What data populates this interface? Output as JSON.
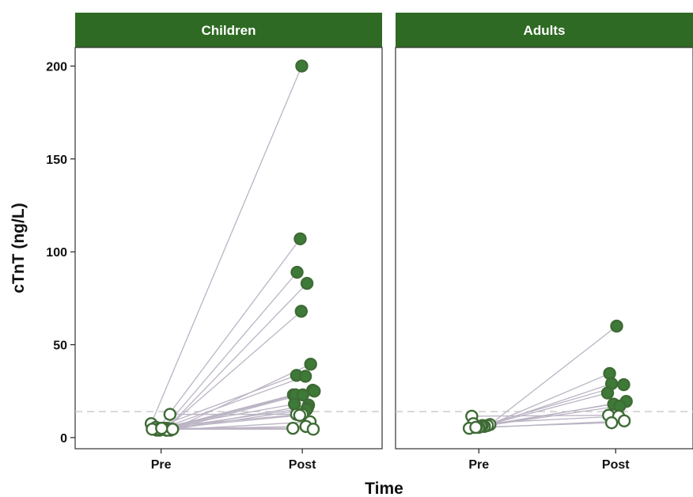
{
  "chart_data": {
    "type": "scatter",
    "title": "",
    "xlabel": "Time",
    "ylabel": "cTnT (ng/L)",
    "x_categories": [
      "Pre",
      "Post"
    ],
    "ylim": [
      -6,
      210
    ],
    "yticks": [
      0,
      50,
      100,
      150,
      200
    ],
    "reference_line": 14,
    "grid": false,
    "legend": "none",
    "colors": {
      "strip_fill": "#2e6a23",
      "point_fill": "#3e7a37",
      "open_point_fill": "#ffffff",
      "point_edge": "#3e6b35",
      "connector": "#bbb4c4",
      "reference_line": "#c8c8c8"
    },
    "panels": [
      {
        "name": "Children",
        "pairs": [
          {
            "pre": 7.5,
            "post": 200,
            "pre_xoff": -0.19,
            "post_xoff": -0.01
          },
          {
            "pre": 5,
            "post": 107,
            "pre_xoff": -0.05,
            "post_xoff": -0.04
          },
          {
            "pre": 4.5,
            "post": 89,
            "pre_xoff": 0.04,
            "post_xoff": -0.1
          },
          {
            "pre": 5,
            "post": 83,
            "pre_xoff": 0.11,
            "post_xoff": 0.09
          },
          {
            "pre": 4.5,
            "post": 68,
            "pre_xoff": 0.08,
            "post_xoff": -0.02
          },
          {
            "pre": 4,
            "post": 39.5,
            "pre_xoff": 0.18,
            "post_xoff": 0.16
          },
          {
            "pre": 5,
            "post": 33.5,
            "pre_xoff": -0.13,
            "post_xoff": -0.11
          },
          {
            "pre": 5,
            "post": 33,
            "pre_xoff": 0.02,
            "post_xoff": 0.06
          },
          {
            "pre": 4.5,
            "post": 25.5,
            "pre_xoff": 0.14,
            "post_xoff": 0.2
          },
          {
            "pre": 4.5,
            "post": 25,
            "pre_xoff": 0.22,
            "post_xoff": 0.23
          },
          {
            "pre": 4,
            "post": 23,
            "pre_xoff": -0.08,
            "post_xoff": -0.17
          },
          {
            "pre": 4,
            "post": 23,
            "pre_xoff": -0.03,
            "post_xoff": -0.13
          },
          {
            "pre": 5,
            "post": 23,
            "pre_xoff": 0.0,
            "post_xoff": 0.01
          },
          {
            "pre": 4.5,
            "post": 18,
            "pre_xoff": -0.15,
            "post_xoff": -0.15
          },
          {
            "pre": 4,
            "post": 17.5,
            "pre_xoff": 0.1,
            "post_xoff": 0.12
          },
          {
            "pre": 5,
            "post": 16,
            "pre_xoff": 0.06,
            "post_xoff": 0.1
          },
          {
            "pre": 4.5,
            "post": 15,
            "pre_xoff": 0.2,
            "post_xoff": 0.08
          },
          {
            "pre": 12.5,
            "post": 12.5,
            "pre_xoff": 0.17,
            "post_xoff": -0.11
          },
          {
            "pre": 5.5,
            "post": 12.5,
            "pre_xoff": -0.1,
            "post_xoff": 0.0
          },
          {
            "pre": 4.5,
            "post": 12,
            "pre_xoff": -0.06,
            "post_xoff": -0.05
          },
          {
            "pre": 4,
            "post": 8.5,
            "pre_xoff": 0.12,
            "post_xoff": 0.15
          },
          {
            "pre": 4.5,
            "post": 6,
            "pre_xoff": -0.17,
            "post_xoff": 0.07
          },
          {
            "pre": 5,
            "post": 5,
            "pre_xoff": 0.01,
            "post_xoff": -0.18
          },
          {
            "pre": 4.5,
            "post": 4.5,
            "pre_xoff": 0.22,
            "post_xoff": 0.21
          }
        ]
      },
      {
        "name": "Adults",
        "pairs": [
          {
            "pre": 7,
            "post": 60,
            "pre_xoff": 0.22,
            "post_xoff": 0.02
          },
          {
            "pre": 6.5,
            "post": 34.5,
            "pre_xoff": 0.17,
            "post_xoff": -0.12
          },
          {
            "pre": 6,
            "post": 29,
            "pre_xoff": 0.11,
            "post_xoff": -0.08
          },
          {
            "pre": 6.5,
            "post": 28.5,
            "pre_xoff": 0.07,
            "post_xoff": 0.16
          },
          {
            "pre": 6,
            "post": 24,
            "pre_xoff": 0.04,
            "post_xoff": -0.16
          },
          {
            "pre": 5.5,
            "post": 19.5,
            "pre_xoff": 0.0,
            "post_xoff": 0.21
          },
          {
            "pre": 6,
            "post": 18,
            "pre_xoff": -0.04,
            "post_xoff": -0.04
          },
          {
            "pre": 5.5,
            "post": 17,
            "pre_xoff": -0.09,
            "post_xoff": 0.08
          },
          {
            "pre": 11.5,
            "post": 12,
            "pre_xoff": -0.14,
            "post_xoff": -0.14
          },
          {
            "pre": 7.5,
            "post": 11.5,
            "pre_xoff": -0.11,
            "post_xoff": 0.06
          },
          {
            "pre": 5,
            "post": 9,
            "pre_xoff": -0.19,
            "post_xoff": 0.17
          },
          {
            "pre": 5.5,
            "post": 8,
            "pre_xoff": -0.06,
            "post_xoff": -0.08
          }
        ]
      }
    ]
  }
}
